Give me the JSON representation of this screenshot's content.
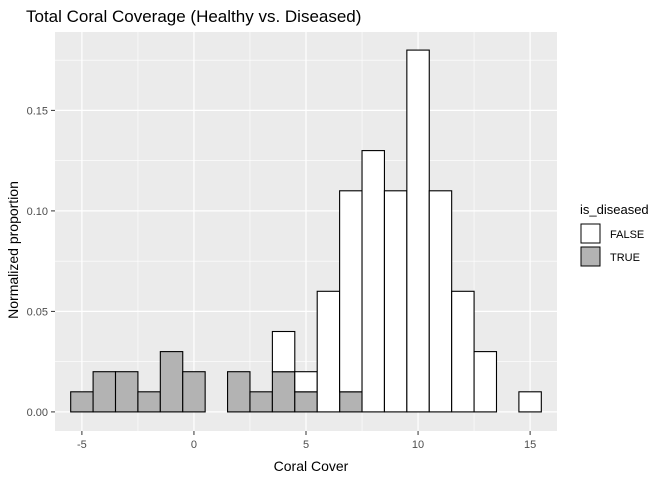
{
  "chart_data": {
    "type": "bar",
    "title": "Total Coral Coverage (Healthy vs. Diseased)",
    "xlabel": "Coral Cover",
    "ylabel": "Normalized proportion",
    "xlim": [
      -6.2,
      16.2
    ],
    "ylim": [
      -0.0095,
      0.189
    ],
    "x_ticks": [
      -5,
      0,
      5,
      10,
      15
    ],
    "y_ticks": [
      0.0,
      0.05,
      0.1,
      0.15
    ],
    "x_tick_labels": [
      "-5",
      "0",
      "5",
      "10",
      "15"
    ],
    "y_tick_labels": [
      "0.00",
      "0.05",
      "0.10",
      "0.15"
    ],
    "bin_width": 1,
    "stacked": true,
    "grid": true,
    "legend": {
      "title": "is_diseased",
      "position": "right",
      "entries": [
        {
          "label": "FALSE",
          "color": "#ffffff"
        },
        {
          "label": "TRUE",
          "color": "#b3b3b3"
        }
      ]
    },
    "series": [
      {
        "name": "TRUE",
        "color": "#b3b3b3",
        "x": [
          -5,
          -4,
          -3,
          -2,
          -1,
          0,
          2,
          3,
          4,
          5,
          7
        ],
        "values": [
          0.01,
          0.02,
          0.02,
          0.01,
          0.03,
          0.02,
          0.02,
          0.01,
          0.02,
          0.01,
          0.01
        ]
      },
      {
        "name": "FALSE",
        "color": "#ffffff",
        "x": [
          4,
          5,
          6,
          7,
          8,
          9,
          10,
          11,
          12,
          13,
          15
        ],
        "values": [
          0.02,
          0.01,
          0.06,
          0.1,
          0.13,
          0.11,
          0.18,
          0.11,
          0.06,
          0.03,
          0.01
        ]
      }
    ],
    "panel_color": "#ebebeb",
    "grid_color": "#ffffff"
  }
}
